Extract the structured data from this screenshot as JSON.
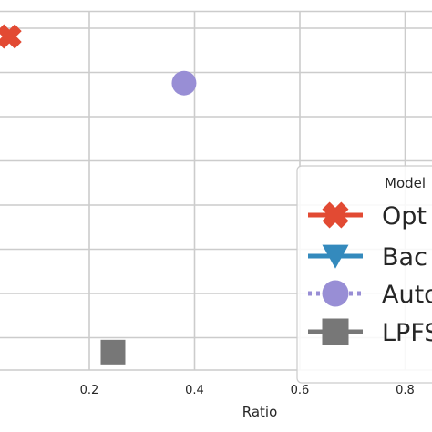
{
  "chart_data": {
    "type": "scatter",
    "xlabel": "Ratio",
    "x_ticks": [
      0.2,
      0.4,
      0.6,
      0.8
    ],
    "x_tick_labels": [
      "0.2",
      "0.4",
      "0.6",
      "0.8"
    ],
    "xlim": [
      0.03,
      0.83
    ],
    "grid": true,
    "legend": {
      "title": "Model",
      "placement": "right",
      "entries": [
        {
          "label": "Opt",
          "marker": "x-icon",
          "color": "#e24a33",
          "line": "solid"
        },
        {
          "label": "Bac",
          "marker": "triangle-down-icon",
          "color": "#348abd",
          "line": "solid"
        },
        {
          "label": "Auto",
          "marker": "circle-icon",
          "color": "#988ed5",
          "line": "dotted"
        },
        {
          "label": "LPFS",
          "marker": "square-icon",
          "color": "#777777",
          "line": "solid"
        }
      ]
    },
    "series": [
      {
        "legend_index": 0,
        "points": [
          {
            "x": 0.048,
            "y": 0.93
          }
        ]
      },
      {
        "legend_index": 2,
        "points": [
          {
            "x": 0.38,
            "y": 0.8
          }
        ]
      },
      {
        "legend_index": 3,
        "points": [
          {
            "x": 0.245,
            "y": 0.05
          }
        ]
      }
    ]
  }
}
